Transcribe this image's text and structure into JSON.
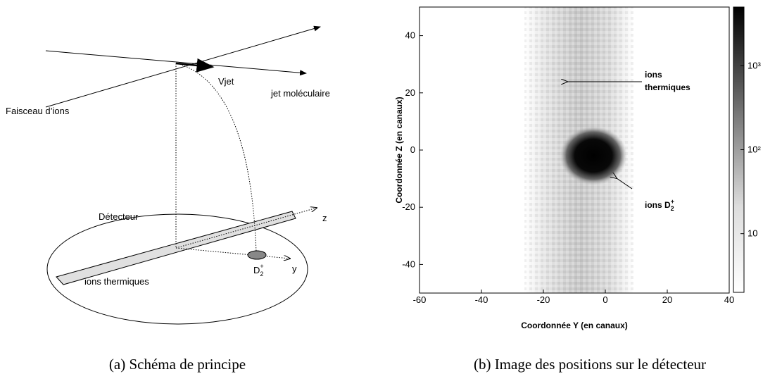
{
  "diagram": {
    "beam": "Faisceau d’ions",
    "vjet": "Vjet",
    "jet": "jet moléculaire",
    "detector": "Détecteur",
    "z": "z",
    "y": "y",
    "ion": {
      "text": "D",
      "sub": "2",
      "sup": "+"
    },
    "thermal": "ions thermiques",
    "caption": "(a) Schéma de principe"
  },
  "chart_data": {
    "type": "heatmap",
    "xlabel": "Coordonnée Y (en canaux)",
    "ylabel": "Coordonnée Z (en canaux)",
    "xlim": [
      -60,
      40
    ],
    "xticks": [
      -60,
      -40,
      -20,
      0,
      20,
      40
    ],
    "ylim": [
      -50,
      50
    ],
    "yticks": [
      -40,
      -20,
      0,
      20,
      40
    ],
    "colorbar": {
      "log": true,
      "lim": [
        2,
        5000
      ],
      "ticks": [
        10,
        {
          "value": 100,
          "label": "10²"
        },
        {
          "value": 1000,
          "label": "10³"
        }
      ]
    },
    "annotations": {
      "thermal_1": "ions",
      "thermal_2": "thermiques",
      "ion": {
        "text": "ions D",
        "sub": "2",
        "sup": "+"
      }
    },
    "caption": "(b) Image des positions sur le détecteur"
  }
}
